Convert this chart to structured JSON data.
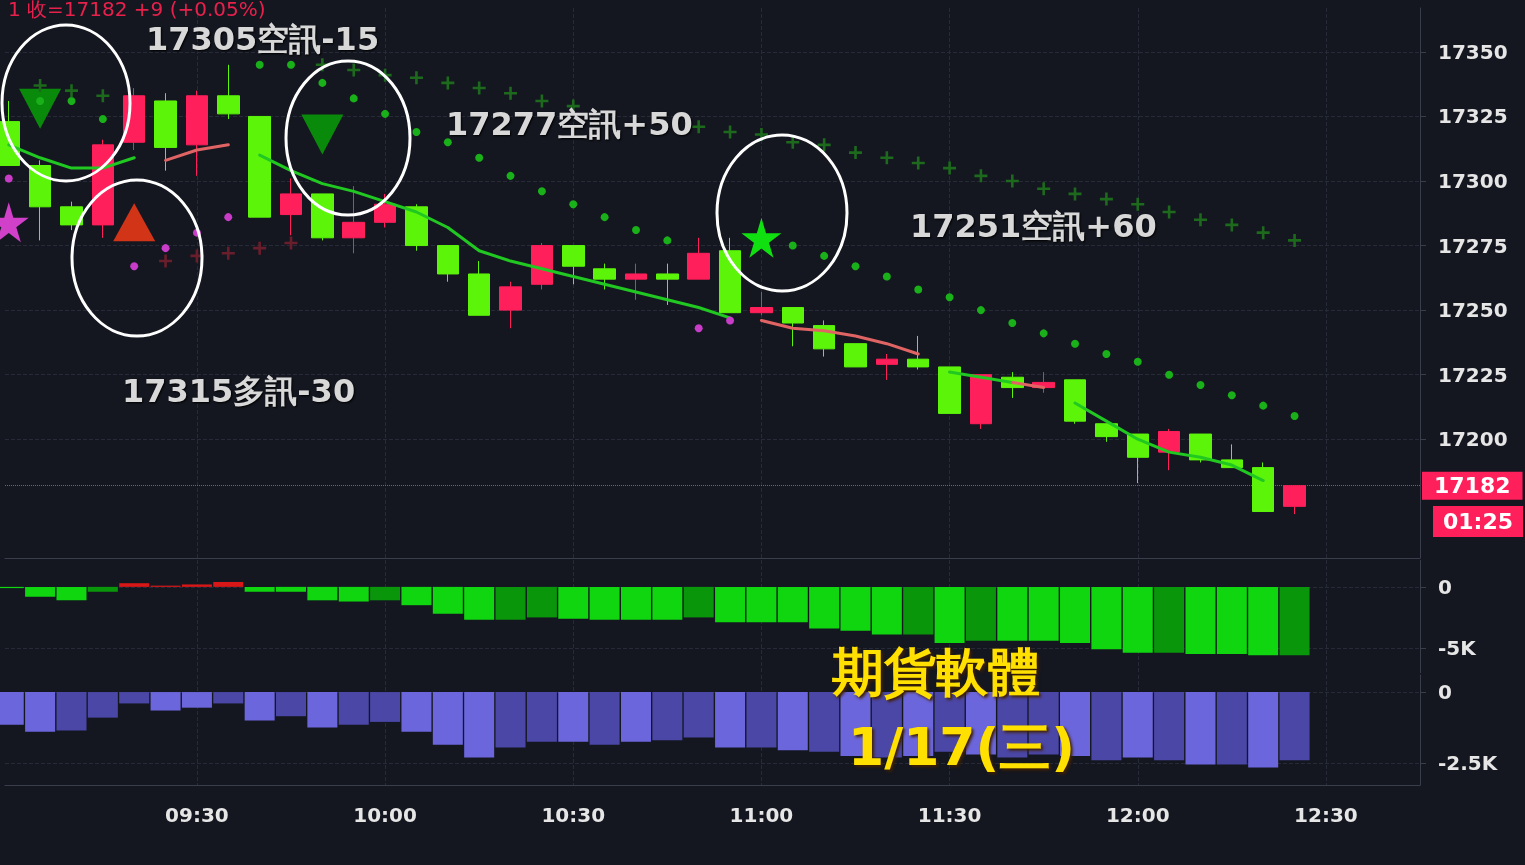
{
  "chart_data": [
    {
      "type": "candlestick",
      "x": [
        9,
        9.0833,
        9.1667,
        9.25,
        9.3333,
        9.4167,
        9.5,
        9.5833,
        9.6667,
        9.75,
        9.8333,
        9.9167,
        10,
        10.0833,
        10.1667,
        10.25,
        10.3333,
        10.4167,
        10.5,
        10.5833,
        10.6667,
        10.75,
        10.8333,
        10.9167,
        11,
        11.0833,
        11.1667,
        11.25,
        11.3333,
        11.4167,
        11.5,
        11.5833,
        11.6667,
        11.75,
        11.8333,
        11.9167,
        12,
        12.0833,
        12.1667,
        12.25,
        12.3333,
        12.4167
      ],
      "ohlc": [
        [
          17323,
          17331,
          17306,
          17306
        ],
        [
          17306,
          17308,
          17277,
          17290
        ],
        [
          17290,
          17292,
          17281,
          17283
        ],
        [
          17283,
          17316,
          17278,
          17314
        ],
        [
          17315,
          17336,
          17312,
          17333
        ],
        [
          17331,
          17334,
          17304,
          17313
        ],
        [
          17314,
          17335,
          17302,
          17333
        ],
        [
          17333,
          17345,
          17324,
          17326
        ],
        [
          17325,
          17325,
          17286,
          17286
        ],
        [
          17287,
          17301,
          17279,
          17295
        ],
        [
          17295,
          17295,
          17277,
          17278
        ],
        [
          17278,
          17298,
          17272,
          17284
        ],
        [
          17284,
          17295,
          17282,
          17291
        ],
        [
          17290,
          17291,
          17273,
          17275
        ],
        [
          17275,
          17275,
          17261,
          17264
        ],
        [
          17264,
          17269,
          17248,
          17248
        ],
        [
          17250,
          17261,
          17243,
          17259
        ],
        [
          17260,
          17276,
          17258,
          17275
        ],
        [
          17275,
          17275,
          17260,
          17267
        ],
        [
          17266,
          17268,
          17258,
          17262
        ],
        [
          17262,
          17268,
          17254,
          17264
        ],
        [
          17264,
          17268,
          17252,
          17262
        ],
        [
          17262,
          17278,
          17262,
          17272
        ],
        [
          17273,
          17278,
          17249,
          17249
        ],
        [
          17249,
          17257,
          17248,
          17251
        ],
        [
          17251,
          17251,
          17236,
          17245
        ],
        [
          17244,
          17246,
          17232,
          17235
        ],
        [
          17237,
          17237,
          17228,
          17228
        ],
        [
          17229,
          17233,
          17223,
          17231
        ],
        [
          17231,
          17240,
          17227,
          17228
        ],
        [
          17228,
          17228,
          17210,
          17210
        ],
        [
          17206,
          17225,
          17204,
          17225
        ],
        [
          17224,
          17226,
          17216,
          17220
        ],
        [
          17220,
          17226,
          17218,
          17222
        ],
        [
          17223,
          17223,
          17206,
          17207
        ],
        [
          17206,
          17206,
          17199,
          17201
        ],
        [
          17202,
          17202,
          17183,
          17193
        ],
        [
          17195,
          17204,
          17188,
          17203
        ],
        [
          17202,
          17202,
          17191,
          17192
        ],
        [
          17192,
          17198,
          17189,
          17189
        ],
        [
          17189,
          17191,
          17172,
          17172
        ],
        [
          17174,
          17182,
          17171,
          17182
        ]
      ],
      "colors": [
        "#5cf50a",
        "#5cf50a",
        "#5cf50a",
        "#ff1f5a",
        "#ff1f5a",
        "#5cf50a",
        "#ff1f5a",
        "#5cf50a",
        "#5cf50a",
        "#ff1f5a",
        "#5cf50a",
        "#ff1f5a",
        "#ff1f5a",
        "#5cf50a",
        "#5cf50a",
        "#5cf50a",
        "#ff1f5a",
        "#ff1f5a",
        "#5cf50a",
        "#5cf50a",
        "#ff1f5a",
        "#5cf50a",
        "#ff1f5a",
        "#5cf50a",
        "#ff1f5a",
        "#5cf50a",
        "#5cf50a",
        "#5cf50a",
        "#ff1f5a",
        "#5cf50a",
        "#5cf50a",
        "#ff1f5a",
        "#5cf50a",
        "#ff1f5a",
        "#5cf50a",
        "#5cf50a",
        "#5cf50a",
        "#ff1f5a",
        "#5cf50a",
        "#5cf50a",
        "#5cf50a",
        "#ff1f5a"
      ],
      "series": [
        {
          "type": "line",
          "color": "#22c822",
          "marker": "none",
          "line_style": "solid",
          "values": [
            17314,
            17309,
            17305,
            17305,
            17309,
            null,
            null,
            null,
            17310,
            17304,
            17299,
            17296,
            17292,
            17288,
            17282,
            17273,
            17269,
            17266,
            17263,
            17260,
            17257,
            17254,
            17251,
            17247,
            null,
            null,
            null,
            null,
            null,
            null,
            17226,
            17224,
            17222,
            null,
            17214,
            17207,
            17200,
            17195,
            17193,
            17190,
            17184,
            null
          ]
        },
        {
          "type": "line",
          "color": "#e06464",
          "marker": "none",
          "line_style": "solid",
          "values": [
            null,
            null,
            null,
            null,
            null,
            17308,
            17312,
            17314,
            null,
            null,
            null,
            null,
            null,
            null,
            null,
            null,
            null,
            null,
            null,
            null,
            null,
            null,
            null,
            null,
            17246,
            17243,
            17242,
            17240,
            17237,
            17233,
            null,
            null,
            17222,
            17220,
            null,
            null,
            null,
            null,
            null,
            null,
            null,
            null
          ]
        },
        {
          "type": "scatter",
          "color": "#19b019",
          "marker": "circle",
          "values": [
            null,
            17331,
            17331,
            17324,
            null,
            null,
            null,
            null,
            17345,
            17345,
            17338,
            17332,
            17326,
            17319,
            17315,
            17309,
            17302,
            17296,
            17291,
            17286,
            17281,
            17277,
            null,
            null,
            null,
            17275,
            17271,
            17267,
            17263,
            17258,
            17255,
            17250,
            17245,
            17241,
            17237,
            17233,
            17230,
            17225,
            17221,
            17217,
            17213,
            17209
          ]
        },
        {
          "type": "scatter",
          "color": "#1d6a1d",
          "marker": "cross",
          "values": [
            null,
            17337,
            17335,
            17333,
            null,
            null,
            null,
            null,
            null,
            null,
            17345,
            17343,
            17341,
            17340,
            17338,
            17336,
            17334,
            17331,
            17329,
            null,
            null,
            null,
            17321,
            17319,
            17318,
            17315,
            17314,
            17311,
            17309,
            17307,
            17305,
            17302,
            17300,
            17297,
            17295,
            17293,
            17291,
            17288,
            17285,
            17283,
            17280,
            17277
          ]
        },
        {
          "type": "scatter",
          "color": "#c83cc8",
          "marker": "circle",
          "values": [
            17301,
            null,
            null,
            null,
            17267,
            17274,
            17280,
            17286,
            null,
            null,
            null,
            null,
            null,
            null,
            null,
            null,
            null,
            null,
            null,
            null,
            null,
            null,
            17243,
            17246,
            null,
            null,
            null,
            null,
            null,
            null,
            null,
            null,
            null,
            null,
            null,
            null,
            null,
            null,
            null,
            null,
            null,
            null
          ]
        },
        {
          "type": "scatter",
          "color": "#6a1e2c",
          "marker": "cross",
          "values": [
            null,
            null,
            null,
            null,
            null,
            17269,
            17271,
            17272,
            17274,
            17276,
            null,
            null,
            null,
            null,
            null,
            null,
            null,
            null,
            null,
            null,
            null,
            null,
            null,
            null,
            null,
            null,
            null,
            null,
            null,
            null,
            null,
            null,
            null,
            null,
            null,
            null,
            null,
            null,
            null,
            null,
            null,
            null
          ]
        },
        {
          "type": "scatter",
          "color": "#0a8a0a",
          "marker": "triangle-down",
          "values": [
            null,
            17328,
            null,
            null,
            null,
            null,
            null,
            null,
            null,
            null,
            17318,
            null,
            null,
            null,
            null,
            null,
            null,
            null,
            null,
            null,
            null,
            null,
            null,
            null,
            null,
            null,
            null,
            null,
            null,
            null,
            null,
            null,
            null,
            null,
            null,
            null,
            null,
            null,
            null,
            null,
            null,
            null
          ]
        },
        {
          "type": "scatter",
          "color": "#d23418",
          "marker": "triangle",
          "values": [
            null,
            null,
            null,
            null,
            17284,
            null,
            null,
            null,
            null,
            null,
            null,
            null,
            null,
            null,
            null,
            null,
            null,
            null,
            null,
            null,
            null,
            null,
            null,
            null,
            null,
            null,
            null,
            null,
            null,
            null,
            null,
            null,
            null,
            null,
            null,
            null,
            null,
            null,
            null,
            null,
            null,
            null
          ]
        },
        {
          "type": "scatter",
          "color": "#10e010",
          "marker": "star",
          "values": [
            null,
            null,
            null,
            null,
            null,
            null,
            null,
            null,
            null,
            null,
            null,
            null,
            null,
            null,
            null,
            null,
            null,
            null,
            null,
            null,
            null,
            null,
            null,
            null,
            17278,
            null,
            null,
            null,
            null,
            null,
            null,
            null,
            null,
            null,
            null,
            null,
            null,
            null,
            null,
            null,
            null,
            null
          ]
        },
        {
          "type": "scatter",
          "color": "#d040c8",
          "marker": "star",
          "values": [
            17284,
            null,
            null,
            null,
            null,
            null,
            null,
            null,
            null,
            null,
            null,
            null,
            null,
            null,
            null,
            null,
            null,
            null,
            null,
            null,
            null,
            null,
            null,
            null,
            null,
            null,
            null,
            null,
            null,
            null,
            null,
            null,
            null,
            null,
            null,
            null,
            null,
            null,
            null,
            null,
            null,
            null
          ]
        }
      ],
      "xlim": [
        8.99,
        12.75
      ],
      "xticks": [
        {
          "value": 9.5,
          "label": null
        },
        {
          "value": 10,
          "label": null
        },
        {
          "value": 10.5,
          "label": null
        },
        {
          "value": 11,
          "label": null
        },
        {
          "value": 11.5,
          "label": null
        },
        {
          "value": 12,
          "label": null
        },
        {
          "value": 12.5,
          "label": null
        }
      ],
      "ylim": [
        17154,
        17367
      ],
      "yticks": [
        17200,
        17225,
        17250,
        17275,
        17300,
        17325,
        17350
      ],
      "grid": true,
      "tick_labels": "y",
      "ref_lines": [
        {
          "axis": "y",
          "value": 17182,
          "label": "17182",
          "color": "#ff1f5a",
          "line_style": "dotted"
        }
      ],
      "annotations": [
        "1 收=17182 +9 (+0.05%)",
        "17305空訊-15",
        "17277空訊+50",
        "17251空訊+60",
        "17315多訊-30",
        "01:25"
      ]
    },
    {
      "type": "bar",
      "x": [
        9,
        9.0833,
        9.1667,
        9.25,
        9.3333,
        9.4167,
        9.5,
        9.5833,
        9.6667,
        9.75,
        9.8333,
        9.9167,
        10,
        10.0833,
        10.1667,
        10.25,
        10.3333,
        10.4167,
        10.5,
        10.5833,
        10.6667,
        10.75,
        10.8333,
        10.9167,
        11,
        11.0833,
        11.1667,
        11.25,
        11.3333,
        11.4167,
        11.5,
        11.5833,
        11.6667,
        11.75,
        11.8333,
        11.9167,
        12,
        12.0833,
        12.1667,
        12.25,
        12.3333,
        12.4167
      ],
      "values": [
        -100,
        -800,
        -1100,
        -400,
        300,
        100,
        200,
        400,
        -400,
        -400,
        -1100,
        -1200,
        -1100,
        -1500,
        -2200,
        -2700,
        -2700,
        -2500,
        -2600,
        -2700,
        -2700,
        -2700,
        -2500,
        -2900,
        -2900,
        -2900,
        -3400,
        -3600,
        -3900,
        -3900,
        -4600,
        -4400,
        -4400,
        -4400,
        -4600,
        -5100,
        -5400,
        -5400,
        -5500,
        -5500,
        -5600,
        -5600
      ],
      "colors": [
        "#0fd60f",
        "#0fd60f",
        "#0fd60f",
        "#0a960a",
        "#d81818",
        "#d81818",
        "#d81818",
        "#d81818",
        "#0fd60f",
        "#0fd60f",
        "#0fd60f",
        "#0fd60f",
        "#0a960a",
        "#0fd60f",
        "#0fd60f",
        "#0fd60f",
        "#0a960a",
        "#0a960a",
        "#0fd60f",
        "#0fd60f",
        "#0fd60f",
        "#0fd60f",
        "#0a960a",
        "#0fd60f",
        "#0fd60f",
        "#0fd60f",
        "#0fd60f",
        "#0fd60f",
        "#0fd60f",
        "#0a960a",
        "#0fd60f",
        "#0a960a",
        "#0fd60f",
        "#0fd60f",
        "#0fd60f",
        "#0fd60f",
        "#0fd60f",
        "#0a960a",
        "#0fd60f",
        "#0fd60f",
        "#0fd60f",
        "#0a960a"
      ],
      "xlim": [
        8.99,
        12.75
      ],
      "xticks": [
        {
          "value": 9.5,
          "label": null
        },
        {
          "value": 10,
          "label": null
        },
        {
          "value": 10.5,
          "label": null
        },
        {
          "value": 11,
          "label": null
        },
        {
          "value": 11.5,
          "label": null
        },
        {
          "value": 12,
          "label": null
        },
        {
          "value": 12.5,
          "label": null
        }
      ],
      "ylim": [
        -7050,
        2200
      ],
      "yticks": [
        0,
        {
          "value": -5000,
          "label": "-5K"
        }
      ],
      "grid": true,
      "tick_labels": "y"
    },
    {
      "type": "bar",
      "x": [
        9,
        9.0833,
        9.1667,
        9.25,
        9.3333,
        9.4167,
        9.5,
        9.5833,
        9.6667,
        9.75,
        9.8333,
        9.9167,
        10,
        10.0833,
        10.1667,
        10.25,
        10.3333,
        10.4167,
        10.5,
        10.5833,
        10.6667,
        10.75,
        10.8333,
        10.9167,
        11,
        11.0833,
        11.1667,
        11.25,
        11.3333,
        11.4167,
        11.5,
        11.5833,
        11.6667,
        11.75,
        11.8333,
        11.9167,
        12,
        12.0833,
        12.1667,
        12.25,
        12.3333,
        12.4167
      ],
      "values": [
        -1150,
        -1400,
        -1350,
        -900,
        -400,
        -650,
        -550,
        -400,
        -1000,
        -850,
        -1250,
        -1150,
        -1050,
        -1400,
        -1850,
        -2300,
        -1950,
        -1750,
        -1750,
        -1850,
        -1750,
        -1700,
        -1600,
        -1950,
        -1950,
        -2050,
        -2100,
        -2250,
        -2300,
        -2250,
        -2100,
        -2200,
        -2300,
        -2200,
        -2250,
        -2400,
        -2300,
        -2400,
        -2550,
        -2550,
        -2650,
        -2400
      ],
      "colors": [
        "#6c66dc",
        "#6c66dc",
        "#4b47a6",
        "#4b47a6",
        "#4b47a6",
        "#6c66dc",
        "#6c66dc",
        "#4b47a6",
        "#6c66dc",
        "#4b47a6",
        "#6c66dc",
        "#4b47a6",
        "#4b47a6",
        "#6c66dc",
        "#6c66dc",
        "#6c66dc",
        "#4b47a6",
        "#4b47a6",
        "#6c66dc",
        "#4b47a6",
        "#6c66dc",
        "#4b47a6",
        "#4b47a6",
        "#6c66dc",
        "#4b47a6",
        "#6c66dc",
        "#4b47a6",
        "#6c66dc",
        "#4b47a6",
        "#6c66dc",
        "#4b47a6",
        "#6c66dc",
        "#4b47a6",
        "#4b47a6",
        "#6c66dc",
        "#4b47a6",
        "#6c66dc",
        "#4b47a6",
        "#6c66dc",
        "#4b47a6",
        "#6c66dc",
        "#4b47a6"
      ],
      "xlim": [
        8.99,
        12.75
      ],
      "xticks": [
        {
          "value": 9.5,
          "label": "09:30"
        },
        {
          "value": 10,
          "label": "10:00"
        },
        {
          "value": 10.5,
          "label": "10:30"
        },
        {
          "value": 11,
          "label": "11:00"
        },
        {
          "value": 11.5,
          "label": "11:30"
        },
        {
          "value": 12,
          "label": "12:00"
        },
        {
          "value": 12.5,
          "label": "12:30"
        }
      ],
      "ylim": [
        -3270,
        600
      ],
      "yticks": [
        0,
        {
          "value": -2500,
          "label": "-2.5K"
        }
      ],
      "grid": true,
      "annotations": [
        "期貨軟體",
        "1/17(三)"
      ]
    }
  ]
}
